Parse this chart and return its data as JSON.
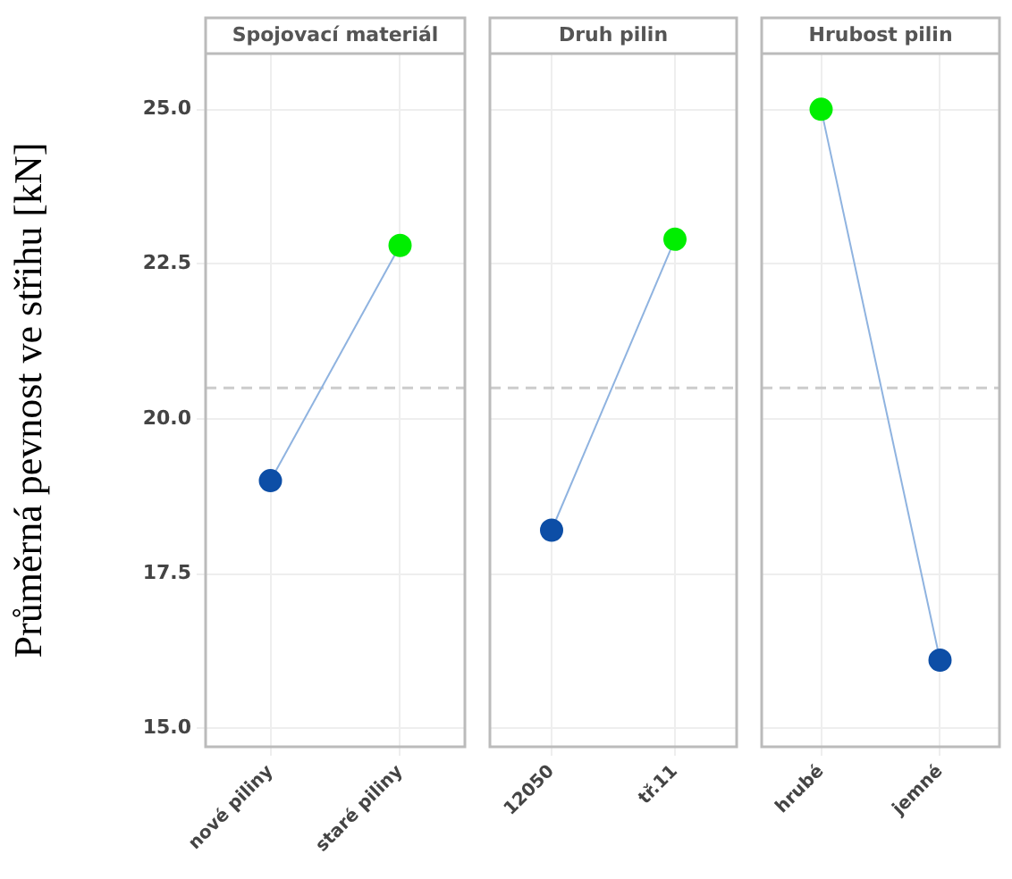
{
  "chart_data": [
    {
      "type": "line",
      "title": "Spojovací materiál",
      "ylabel": "Průměrná pevnost ve střihu [kN]",
      "categories": [
        "nové piliny",
        "staré piliny"
      ],
      "series": [
        {
          "color": "#8fb3e0",
          "colors": [
            "#0d4ea6",
            "#00ee00"
          ],
          "values": [
            19.0,
            22.8
          ]
        }
      ],
      "ylim": [
        14.7,
        25.9
      ],
      "yticks": [
        {
          "value": 15,
          "label": "15.0"
        },
        {
          "value": 17.5,
          "label": "17.5"
        },
        {
          "value": 20,
          "label": "20.0"
        },
        {
          "value": 22.5,
          "label": "22.5"
        },
        {
          "value": 25,
          "label": "25.0"
        }
      ],
      "ref_lines": [
        {
          "axis": "y",
          "value": 20.5,
          "color": "#cccccc",
          "line_style": "dashed"
        }
      ],
      "grid": true,
      "legend": false,
      "marker": "circle"
    },
    {
      "type": "line",
      "title": "Druh pilin",
      "categories": [
        "12050",
        "tř.11"
      ],
      "series": [
        {
          "color": "#8fb3e0",
          "colors": [
            "#0d4ea6",
            "#00ee00"
          ],
          "values": [
            18.2,
            22.9
          ]
        }
      ],
      "ylim": [
        14.7,
        25.9
      ],
      "yticks": [
        15,
        17.5,
        20,
        22.5,
        25
      ],
      "ref_lines": [
        {
          "axis": "y",
          "value": 20.5,
          "color": "#cccccc",
          "line_style": "dashed"
        }
      ],
      "grid": true,
      "legend": false,
      "marker": "circle",
      "tick_labels": "x"
    },
    {
      "type": "line",
      "title": "Hrubost pilin",
      "categories": [
        "hrubé",
        "jemné"
      ],
      "series": [
        {
          "color": "#8fb3e0",
          "colors": [
            "#00ee00",
            "#0d4ea6"
          ],
          "values": [
            25.0,
            16.1
          ]
        }
      ],
      "ylim": [
        14.7,
        25.9
      ],
      "yticks": [
        15,
        17.5,
        20,
        22.5,
        25
      ],
      "ref_lines": [
        {
          "axis": "y",
          "value": 20.5,
          "color": "#cccccc",
          "line_style": "dashed"
        }
      ],
      "grid": true,
      "legend": false,
      "marker": "circle",
      "tick_labels": "x"
    }
  ]
}
